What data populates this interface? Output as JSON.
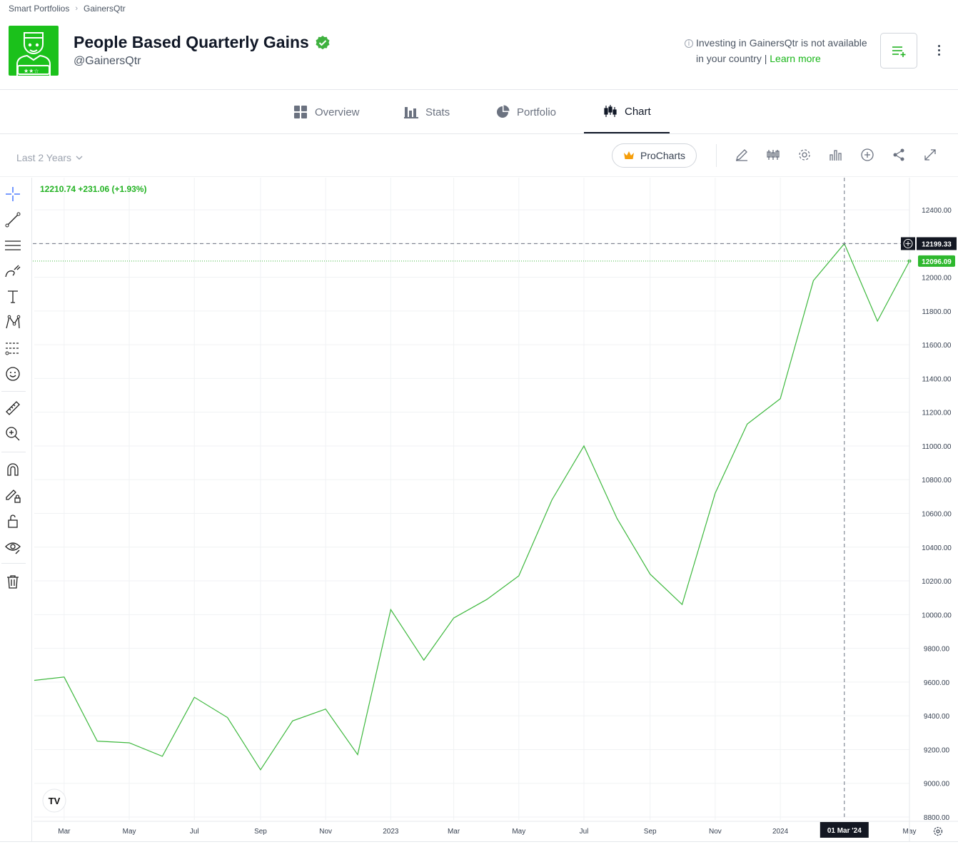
{
  "breadcrumb": {
    "root": "Smart Portfolios",
    "current": "GainersQtr"
  },
  "header": {
    "title": "People Based Quarterly Gains",
    "handle": "@GainersQtr",
    "notice_text": "Investing in GainersQtr is not available in your country",
    "notice_sep": "|",
    "notice_link": "Learn more"
  },
  "tabs": [
    {
      "label": "Overview",
      "icon": "grid-icon"
    },
    {
      "label": "Stats",
      "icon": "bar-chart-icon"
    },
    {
      "label": "Portfolio",
      "icon": "pie-chart-icon"
    },
    {
      "label": "Chart",
      "icon": "candlestick-icon",
      "active": true
    }
  ],
  "toolbar": {
    "range": "Last 2 Years",
    "procharts": "ProCharts"
  },
  "legend": {
    "value": "12210.74",
    "change": "+231.06 (+1.93%)"
  },
  "colors": {
    "brand_green": "#1bc11b",
    "line": "#3db83d",
    "accent_link": "#18b618"
  },
  "chart_data": {
    "type": "line",
    "x": [
      "2022-02-01",
      "2022-03-01",
      "2022-04-01",
      "2022-05-01",
      "2022-06-01",
      "2022-07-01",
      "2022-08-01",
      "2022-09-01",
      "2022-10-01",
      "2022-11-01",
      "2022-12-01",
      "2023-01-01",
      "2023-02-01",
      "2023-03-01",
      "2023-04-01",
      "2023-05-01",
      "2023-06-01",
      "2023-07-01",
      "2023-08-01",
      "2023-09-01",
      "2023-10-01",
      "2023-11-01",
      "2023-12-01",
      "2024-01-01",
      "2024-02-01",
      "2024-03-01",
      "2024-04-01",
      "2024-05-01"
    ],
    "values": [
      9610,
      9630,
      9250,
      9240,
      9160,
      9510,
      9390,
      9080,
      9370,
      9440,
      9170,
      10030,
      9730,
      9980,
      10090,
      10230,
      10680,
      11000,
      10570,
      10240,
      10060,
      10720,
      11130,
      11280,
      11980,
      12199.33,
      11740,
      12096.09
    ],
    "ylim": [
      8800,
      12500
    ],
    "yticks": [
      "12400.00",
      "12200.00",
      "12000.00",
      "11800.00",
      "11600.00",
      "11400.00",
      "11200.00",
      "11000.00",
      "10800.00",
      "10600.00",
      "10400.00",
      "10200.00",
      "10000.00",
      "9800.00",
      "9600.00",
      "9400.00",
      "9200.00",
      "9000.00",
      "8800.00"
    ],
    "xticks": [
      "Mar",
      "May",
      "Jul",
      "Sep",
      "Nov",
      "2023",
      "Mar",
      "May",
      "Jul",
      "Sep",
      "Nov",
      "2024",
      "May"
    ],
    "crosshair": {
      "x_label": "01 Mar '24",
      "y_label": "12199.33",
      "index": 25
    },
    "last_price_label": "12096.09",
    "grid": true
  }
}
